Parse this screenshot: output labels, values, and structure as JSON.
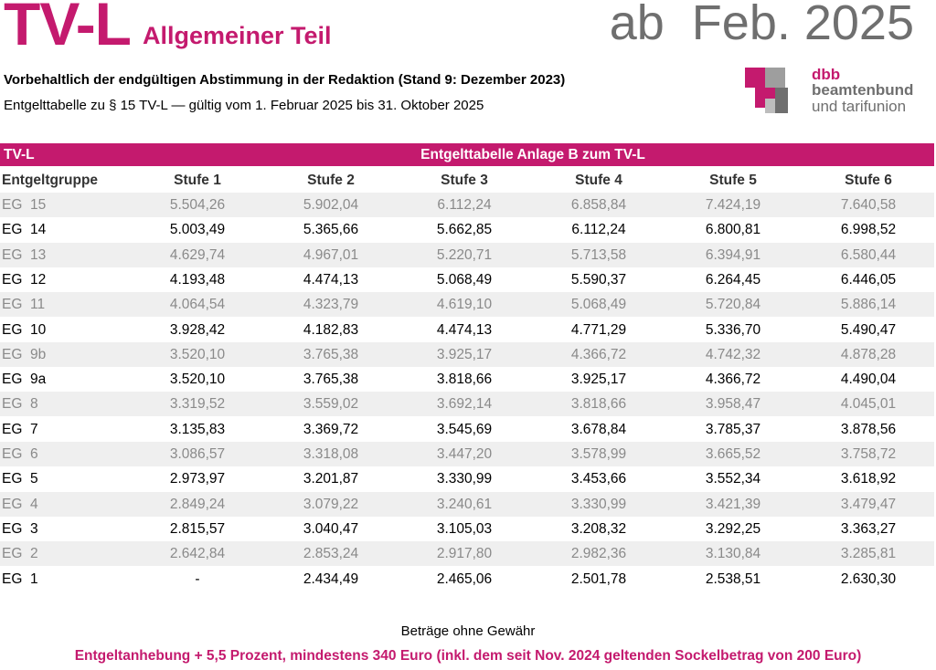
{
  "header": {
    "title": "TV-L",
    "subtitle": "Allgemeiner Teil",
    "date": "ab  Feb. 2025",
    "line1": "Vorbehaltlich der endgültigen Abstimmung in der Redaktion  (Stand 9: Dezember 2023)",
    "line2": "Entgelttabelle zu § 15 TV-L  —  gültig vom 1. Februar 2025 bis 31. Oktober 2025"
  },
  "logo": {
    "mark": "dbb",
    "line1": "beamtenbund",
    "line2": "und tarifunion"
  },
  "table": {
    "label": "TV-L",
    "caption": "Entgelttabelle Anlage B zum TV-L",
    "columns": [
      "Entgeltgruppe",
      "Stufe 1",
      "Stufe 2",
      "Stufe 3",
      "Stufe 4",
      "Stufe 5",
      "Stufe 6"
    ],
    "rows": [
      [
        "EG  15",
        "5.504,26",
        "5.902,04",
        "6.112,24",
        "6.858,84",
        "7.424,19",
        "7.640,58"
      ],
      [
        "EG  14",
        "5.003,49",
        "5.365,66",
        "5.662,85",
        "6.112,24",
        "6.800,81",
        "6.998,52"
      ],
      [
        "EG  13",
        "4.629,74",
        "4.967,01",
        "5.220,71",
        "5.713,58",
        "6.394,91",
        "6.580,44"
      ],
      [
        "EG  12",
        "4.193,48",
        "4.474,13",
        "5.068,49",
        "5.590,37",
        "6.264,45",
        "6.446,05"
      ],
      [
        "EG  11",
        "4.064,54",
        "4.323,79",
        "4.619,10",
        "5.068,49",
        "5.720,84",
        "5.886,14"
      ],
      [
        "EG  10",
        "3.928,42",
        "4.182,83",
        "4.474,13",
        "4.771,29",
        "5.336,70",
        "5.490,47"
      ],
      [
        "EG  9b",
        "3.520,10",
        "3.765,38",
        "3.925,17",
        "4.366,72",
        "4.742,32",
        "4.878,28"
      ],
      [
        "EG  9a",
        "3.520,10",
        "3.765,38",
        "3.818,66",
        "3.925,17",
        "4.366,72",
        "4.490,04"
      ],
      [
        "EG  8",
        "3.319,52",
        "3.559,02",
        "3.692,14",
        "3.818,66",
        "3.958,47",
        "4.045,01"
      ],
      [
        "EG  7",
        "3.135,83",
        "3.369,72",
        "3.545,69",
        "3.678,84",
        "3.785,37",
        "3.878,56"
      ],
      [
        "EG  6",
        "3.086,57",
        "3.318,08",
        "3.447,20",
        "3.578,99",
        "3.665,52",
        "3.758,72"
      ],
      [
        "EG  5",
        "2.973,97",
        "3.201,87",
        "3.330,99",
        "3.453,66",
        "3.552,34",
        "3.618,92"
      ],
      [
        "EG  4",
        "2.849,24",
        "3.079,22",
        "3.240,61",
        "3.330,99",
        "3.421,39",
        "3.479,47"
      ],
      [
        "EG  3",
        "2.815,57",
        "3.040,47",
        "3.105,03",
        "3.208,32",
        "3.292,25",
        "3.363,27"
      ],
      [
        "EG  2",
        "2.642,84",
        "2.853,24",
        "2.917,80",
        "2.982,36",
        "3.130,84",
        "3.285,81"
      ],
      [
        "EG  1",
        "-",
        "2.434,49",
        "2.465,06",
        "2.501,78",
        "2.538,51",
        "2.630,30"
      ]
    ]
  },
  "footer": {
    "note": "Beträge ohne Gewähr",
    "highlight": "Entgeltanhebung + 5,5 Prozent, mindestens 340 Euro (inkl. dem seit Nov. 2024 geltenden Sockelbetrag von 200 Euro)"
  }
}
